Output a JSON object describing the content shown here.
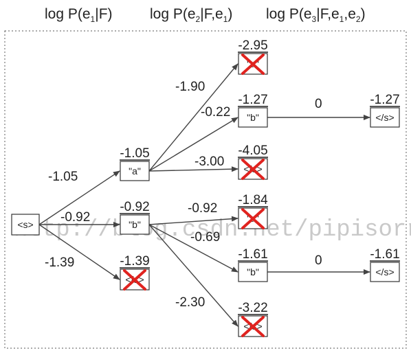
{
  "headers": [
    {
      "main": "log P(e",
      "sub": "1",
      "tail": "|F)"
    },
    {
      "main": "log P(e",
      "sub": "2",
      "tail": "|F,e",
      "sub2": "1",
      "tail2": ")"
    },
    {
      "main": "log P(e",
      "sub": "3",
      "tail": "|F,e",
      "sub2": "1",
      "tail2": ",e",
      "sub3": "2",
      "tail3": ")"
    }
  ],
  "nodes": {
    "start": {
      "label": "<s>"
    },
    "a": {
      "label": "\"a\"",
      "score": "-1.05"
    },
    "b1": {
      "label": "\"b\"",
      "score": "-0.92"
    },
    "end1": {
      "label": "</s>",
      "score": "-1.39",
      "pruned": true
    },
    "aa": {
      "label": "\"a\"",
      "score": "-2.95",
      "pruned": true
    },
    "ab": {
      "label": "\"b\"",
      "score": "-1.27"
    },
    "aend": {
      "label": "</s>",
      "score": "-4.05",
      "pruned": true
    },
    "ba": {
      "label": "\"a\"",
      "score": "-1.84",
      "pruned": true
    },
    "bb": {
      "label": "\"b\"",
      "score": "-1.61"
    },
    "bend": {
      "label": "</s>",
      "score": "-3.22",
      "pruned": true
    },
    "abend": {
      "label": "</s>",
      "score": "-1.27"
    },
    "bbend": {
      "label": "</s>",
      "score": "-1.61"
    }
  },
  "edges": [
    {
      "from": "start",
      "to": "a",
      "label": "-1.05"
    },
    {
      "from": "start",
      "to": "b1",
      "label": "-0.92"
    },
    {
      "from": "start",
      "to": "end1",
      "label": "-1.39"
    },
    {
      "from": "a",
      "to": "aa",
      "label": "-1.90"
    },
    {
      "from": "a",
      "to": "ab",
      "label": "-0.22"
    },
    {
      "from": "a",
      "to": "aend",
      "label": "-3.00"
    },
    {
      "from": "b1",
      "to": "ba",
      "label": "-0.92"
    },
    {
      "from": "b1",
      "to": "bb",
      "label": "-0.69"
    },
    {
      "from": "b1",
      "to": "bend",
      "label": "-2.30"
    },
    {
      "from": "ab",
      "to": "abend",
      "label": "0"
    },
    {
      "from": "bb",
      "to": "bbend",
      "label": "0"
    }
  ],
  "watermark": "http://blog.csdn.net/pipisorry",
  "colors": {
    "cross": "#e0231f",
    "line": "#444444",
    "frame": "#777777"
  }
}
